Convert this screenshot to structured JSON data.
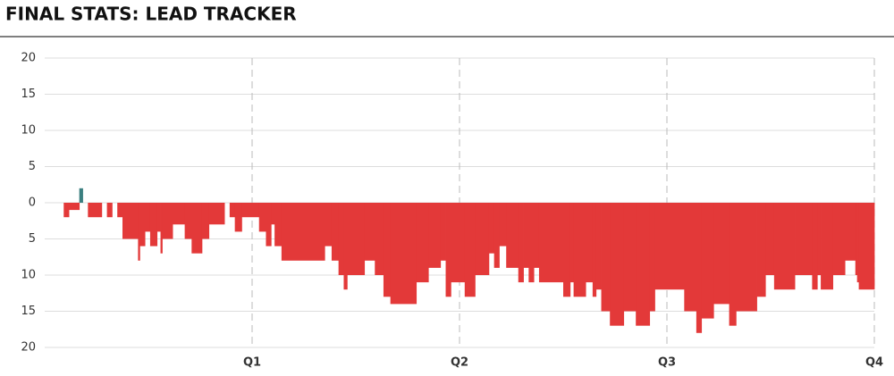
{
  "chart_data": {
    "type": "lead",
    "title": "FINAL STATS: LEAD TRACKER",
    "x": [
      0,
      1.1,
      1.4,
      2.0,
      2.2,
      2.5,
      3.3,
      3.6,
      3.9,
      4.2,
      4.5,
      5.4,
      5.5,
      5.8,
      6.1,
      6.5,
      6.7,
      6.8,
      7.4,
      8.1,
      8.5,
      9.1,
      9.5,
      10.4,
      10.7,
      11.0,
      11.4,
      12.4,
      12.8,
      13.1,
      13.3,
      13.7,
      16.2,
      16.6,
      17.0,
      17.3,
      17.5,
      18.5,
      19.1,
      19.6,
      20.0,
      21.5,
      22.2,
      22.9,
      23.2,
      23.5,
      24.3,
      24.9,
      25.7,
      26.0,
      26.3,
      26.7,
      27.4,
      27.7,
      28.0,
      28.3,
      28.6,
      30.0,
      30.4,
      30.6,
      31.3,
      31.7,
      31.9,
      32.2,
      32.7,
      33.5,
      34.2,
      35.0,
      35.3,
      37.0,
      37.7,
      38.0,
      38.7,
      39.6,
      40.0,
      41.2,
      41.7,
      42.2,
      43.4,
      44.4,
      44.7,
      44.9,
      45.6,
      46.3,
      46.9,
      47.0,
      47.1
    ],
    "values": [
      0,
      -2,
      -1,
      2,
      0,
      -2,
      0,
      -2,
      0,
      -2,
      -5,
      -8,
      -6,
      -4,
      -6,
      -4,
      -7,
      -5,
      -3,
      -5,
      -7,
      -5,
      -3,
      0,
      -2,
      -4,
      -2,
      -4,
      -6,
      -3,
      -6,
      -8,
      -6,
      -8,
      -10,
      -12,
      -10,
      -8,
      -10,
      -13,
      -14,
      -11,
      -9,
      -8,
      -13,
      -11,
      -13,
      -10,
      -7,
      -9,
      -6,
      -9,
      -11,
      -9,
      -11,
      -9,
      -11,
      -13,
      -11,
      -13,
      -11,
      -13,
      -12,
      -15,
      -17,
      -15,
      -17,
      -15,
      -12,
      -15,
      -18,
      -16,
      -14,
      -17,
      -15,
      -13,
      -10,
      -12,
      -10,
      -12,
      -10,
      -12,
      -10,
      -8,
      -10,
      -11,
      -12
    ],
    "positive_color": "#3b7f80",
    "negative_color": "#e33939",
    "xlim": [
      0,
      48
    ],
    "xticks": [
      {
        "value": 12,
        "label": "Q1"
      },
      {
        "value": 24,
        "label": "Q2"
      },
      {
        "value": 36,
        "label": "Q3"
      },
      {
        "value": 48,
        "label": "Q4"
      }
    ],
    "ylim": [
      -20,
      20
    ],
    "yticks": [
      20,
      15,
      10,
      5,
      0,
      {
        "value": -5,
        "label": "5"
      },
      {
        "value": -10,
        "label": "10"
      },
      {
        "value": -15,
        "label": "15"
      },
      {
        "value": -20,
        "label": "20"
      }
    ],
    "grid": true
  }
}
